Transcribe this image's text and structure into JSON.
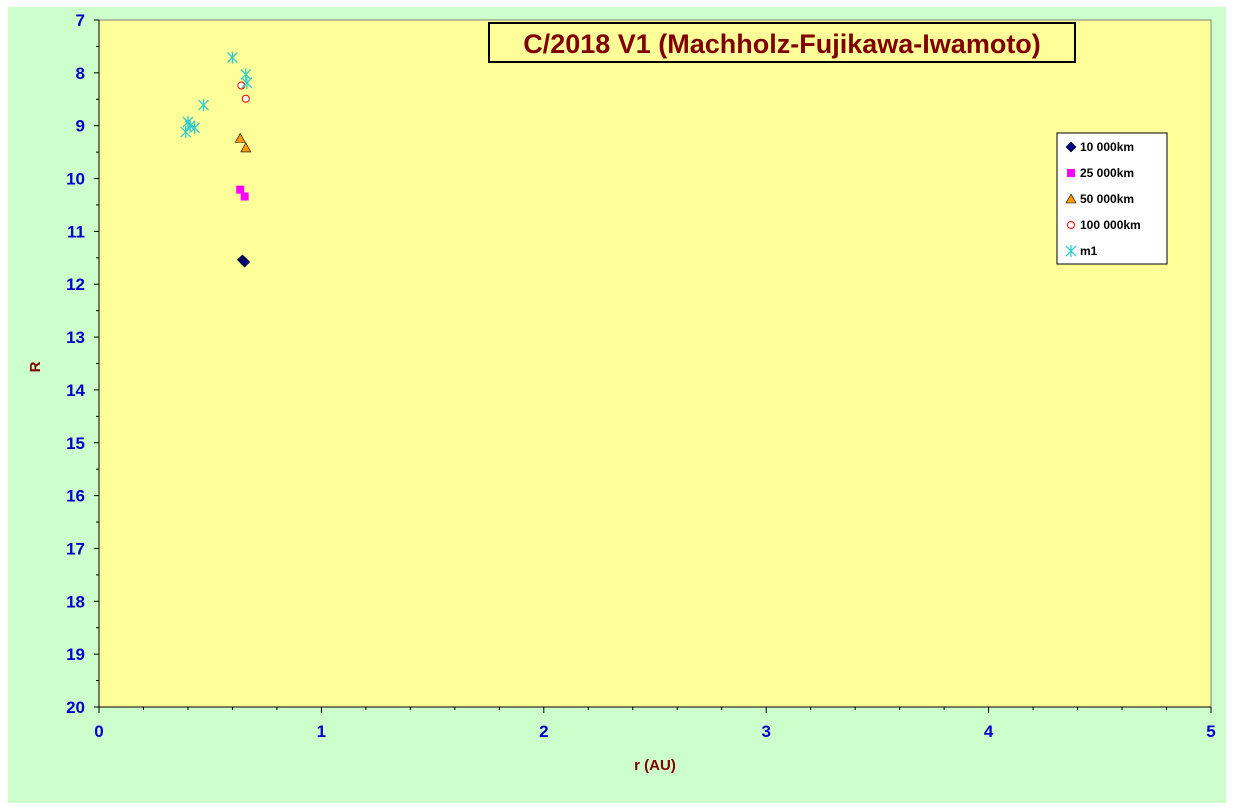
{
  "chart_data": {
    "type": "scatter",
    "title": "C/2018 V1 (Machholz-Fujikawa-Iwamoto)",
    "xlabel": "r (AU)",
    "ylabel": "R",
    "xlim": [
      0,
      5
    ],
    "ylim": [
      7,
      20
    ],
    "y_inverted": true,
    "x_ticks": [
      "0",
      "1",
      "2",
      "3",
      "4",
      "5"
    ],
    "y_ticks": [
      "7",
      "8",
      "9",
      "10",
      "11",
      "12",
      "13",
      "14",
      "15",
      "16",
      "17",
      "18",
      "19",
      "20"
    ],
    "grid": false,
    "legend_position": "right",
    "colors": {
      "plot_background": "#ffff99",
      "chart_background": "#ccffcc",
      "tick_labels": "#0000cc",
      "axis_titles": "#800000"
    },
    "series": [
      {
        "name": "10 000km",
        "marker": "diamond",
        "color": "#000080",
        "points": [
          [
            0.645,
            11.54
          ],
          [
            0.655,
            11.58
          ]
        ]
      },
      {
        "name": "25 000km",
        "marker": "square",
        "color": "#ff00ff",
        "points": [
          [
            0.635,
            10.21
          ],
          [
            0.655,
            10.34
          ]
        ]
      },
      {
        "name": "50 000km",
        "marker": "triangle",
        "color": "#ff9900",
        "points": [
          [
            0.635,
            9.24
          ],
          [
            0.66,
            9.42
          ]
        ]
      },
      {
        "name": "100 000km",
        "marker": "circle",
        "color": "#ff0000",
        "points": [
          [
            0.64,
            8.24
          ],
          [
            0.66,
            8.49
          ]
        ]
      },
      {
        "name": "m1",
        "marker": "star",
        "color": "#33cccc",
        "points": [
          [
            0.6,
            7.71
          ],
          [
            0.66,
            8.03
          ],
          [
            0.665,
            8.19
          ],
          [
            0.47,
            8.61
          ],
          [
            0.4,
            8.93
          ],
          [
            0.41,
            9.0
          ],
          [
            0.43,
            9.04
          ],
          [
            0.39,
            9.12
          ]
        ]
      }
    ]
  }
}
